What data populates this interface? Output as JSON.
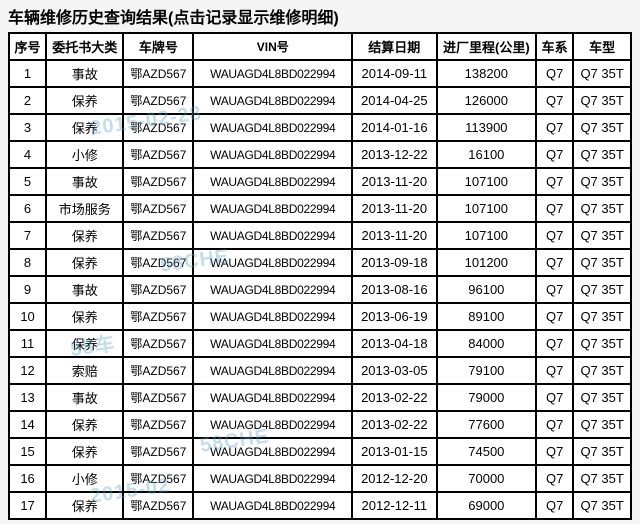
{
  "title": "车辆维修历史查询结果(点击记录显示维修明细)",
  "headers": {
    "seq": "序号",
    "type": "委托书大类",
    "plate": "车牌号",
    "vin": "VIN号",
    "date": "结算日期",
    "mileage": "进厂里程(公里)",
    "series": "车系",
    "model": "车型"
  },
  "rows": [
    {
      "seq": "1",
      "type": "事故",
      "plate": "鄂AZD567",
      "vin": "WAUAGD4L8BD022994",
      "date": "2014-09-11",
      "mileage": "138200",
      "series": "Q7",
      "model": "Q7 35T"
    },
    {
      "seq": "2",
      "type": "保养",
      "plate": "鄂AZD567",
      "vin": "WAUAGD4L8BD022994",
      "date": "2014-04-25",
      "mileage": "126000",
      "series": "Q7",
      "model": "Q7 35T"
    },
    {
      "seq": "3",
      "type": "保养",
      "plate": "鄂AZD567",
      "vin": "WAUAGD4L8BD022994",
      "date": "2014-01-16",
      "mileage": "113900",
      "series": "Q7",
      "model": "Q7 35T"
    },
    {
      "seq": "4",
      "type": "小修",
      "plate": "鄂AZD567",
      "vin": "WAUAGD4L8BD022994",
      "date": "2013-12-22",
      "mileage": "16100",
      "series": "Q7",
      "model": "Q7 35T"
    },
    {
      "seq": "5",
      "type": "事故",
      "plate": "鄂AZD567",
      "vin": "WAUAGD4L8BD022994",
      "date": "2013-11-20",
      "mileage": "107100",
      "series": "Q7",
      "model": "Q7 35T"
    },
    {
      "seq": "6",
      "type": "市场服务",
      "plate": "鄂AZD567",
      "vin": "WAUAGD4L8BD022994",
      "date": "2013-11-20",
      "mileage": "107100",
      "series": "Q7",
      "model": "Q7 35T"
    },
    {
      "seq": "7",
      "type": "保养",
      "plate": "鄂AZD567",
      "vin": "WAUAGD4L8BD022994",
      "date": "2013-11-20",
      "mileage": "107100",
      "series": "Q7",
      "model": "Q7 35T"
    },
    {
      "seq": "8",
      "type": "保养",
      "plate": "鄂AZD567",
      "vin": "WAUAGD4L8BD022994",
      "date": "2013-09-18",
      "mileage": "101200",
      "series": "Q7",
      "model": "Q7 35T"
    },
    {
      "seq": "9",
      "type": "事故",
      "plate": "鄂AZD567",
      "vin": "WAUAGD4L8BD022994",
      "date": "2013-08-16",
      "mileage": "96100",
      "series": "Q7",
      "model": "Q7 35T"
    },
    {
      "seq": "10",
      "type": "保养",
      "plate": "鄂AZD567",
      "vin": "WAUAGD4L8BD022994",
      "date": "2013-06-19",
      "mileage": "89100",
      "series": "Q7",
      "model": "Q7 35T"
    },
    {
      "seq": "11",
      "type": "保养",
      "plate": "鄂AZD567",
      "vin": "WAUAGD4L8BD022994",
      "date": "2013-04-18",
      "mileage": "84000",
      "series": "Q7",
      "model": "Q7 35T"
    },
    {
      "seq": "12",
      "type": "索赔",
      "plate": "鄂AZD567",
      "vin": "WAUAGD4L8BD022994",
      "date": "2013-03-05",
      "mileage": "79100",
      "series": "Q7",
      "model": "Q7 35T"
    },
    {
      "seq": "13",
      "type": "事故",
      "plate": "鄂AZD567",
      "vin": "WAUAGD4L8BD022994",
      "date": "2013-02-22",
      "mileage": "79000",
      "series": "Q7",
      "model": "Q7 35T"
    },
    {
      "seq": "14",
      "type": "保养",
      "plate": "鄂AZD567",
      "vin": "WAUAGD4L8BD022994",
      "date": "2013-02-22",
      "mileage": "77600",
      "series": "Q7",
      "model": "Q7 35T"
    },
    {
      "seq": "15",
      "type": "保养",
      "plate": "鄂AZD567",
      "vin": "WAUAGD4L8BD022994",
      "date": "2013-01-15",
      "mileage": "74500",
      "series": "Q7",
      "model": "Q7 35T"
    },
    {
      "seq": "16",
      "type": "小修",
      "plate": "鄂AZD567",
      "vin": "WAUAGD4L8BD022994",
      "date": "2012-12-20",
      "mileage": "70000",
      "series": "Q7",
      "model": "Q7 35T"
    },
    {
      "seq": "17",
      "type": "保养",
      "plate": "鄂AZD567",
      "vin": "WAUAGD4L8BD022994",
      "date": "2012-12-11",
      "mileage": "69000",
      "series": "Q7",
      "model": "Q7 35T"
    }
  ],
  "styling": {
    "border_color": "#000000",
    "border_width": 2,
    "background_color": "#ffffff",
    "body_background": "#f5f5f5",
    "title_fontsize": 16,
    "cell_fontsize": 13,
    "watermark_color": "rgba(80,160,200,0.35)"
  }
}
